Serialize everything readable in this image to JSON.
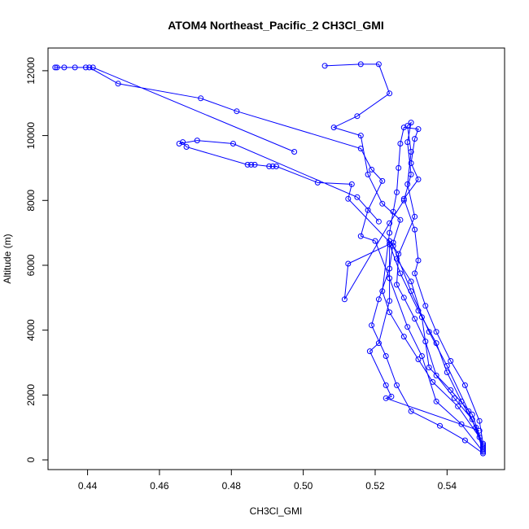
{
  "chart_data": {
    "type": "scatter",
    "title": "ATOM4 Northeast_Pacific_2 CH3Cl_GMI",
    "xlabel": "CH3Cl_GMI",
    "ylabel": "Altitude (m)",
    "xlim": [
      0.429,
      0.556
    ],
    "ylim": [
      -300,
      12700
    ],
    "x_ticks": [
      0.44,
      0.46,
      0.48,
      0.5,
      0.52,
      0.54
    ],
    "x_tick_labels": [
      "0.44",
      "0.46",
      "0.48",
      "0.50",
      "0.52",
      "0.54"
    ],
    "y_ticks": [
      0,
      2000,
      4000,
      6000,
      8000,
      10000,
      12000
    ],
    "y_tick_labels": [
      "0",
      "2000",
      "4000",
      "6000",
      "8000",
      "10000",
      "12000"
    ],
    "grid": false,
    "color": "#0000ff",
    "series": [
      {
        "mode": "lines+markers",
        "points": [
          [
            0.55,
            200
          ],
          [
            0.545,
            600
          ],
          [
            0.538,
            1050
          ],
          [
            0.53,
            1500
          ],
          [
            0.526,
            2300
          ],
          [
            0.523,
            3200
          ],
          [
            0.519,
            4150
          ],
          [
            0.521,
            4950
          ],
          [
            0.524,
            5900
          ],
          [
            0.525,
            6700
          ],
          [
            0.527,
            7400
          ],
          [
            0.522,
            7900
          ],
          [
            0.518,
            8800
          ],
          [
            0.516,
            10000
          ],
          [
            0.5085,
            10250
          ],
          [
            0.515,
            10600
          ],
          [
            0.524,
            11300
          ],
          [
            0.521,
            12200
          ],
          [
            0.516,
            12200
          ],
          [
            0.506,
            12150
          ]
        ]
      },
      {
        "mode": "lines+markers",
        "points": [
          [
            0.55,
            450
          ],
          [
            0.547,
            1400
          ],
          [
            0.541,
            2150
          ],
          [
            0.535,
            2850
          ],
          [
            0.533,
            4400
          ],
          [
            0.53,
            5500
          ],
          [
            0.526,
            6200
          ],
          [
            0.531,
            7500
          ],
          [
            0.529,
            8500
          ],
          [
            0.53,
            9500
          ],
          [
            0.529,
            10300
          ],
          [
            0.53,
            10400
          ],
          [
            0.529,
            9800
          ],
          [
            0.53,
            8800
          ],
          [
            0.528,
            8000
          ],
          [
            0.524,
            7300
          ],
          [
            0.5115,
            4950
          ],
          [
            0.5125,
            6050
          ],
          [
            0.524,
            6650
          ],
          [
            0.527,
            5750
          ],
          [
            0.532,
            4600
          ],
          [
            0.537,
            3600
          ],
          [
            0.54,
            2700
          ],
          [
            0.544,
            1800
          ],
          [
            0.548,
            1000
          ],
          [
            0.55,
            350
          ]
        ]
      },
      {
        "mode": "lines+markers",
        "points": [
          [
            0.55,
            250
          ],
          [
            0.544,
            1100
          ],
          [
            0.537,
            1800
          ],
          [
            0.533,
            3200
          ],
          [
            0.529,
            4100
          ],
          [
            0.524,
            5600
          ],
          [
            0.52,
            6750
          ],
          [
            0.516,
            6900
          ],
          [
            0.518,
            7700
          ],
          [
            0.522,
            8600
          ],
          [
            0.519,
            8950
          ],
          [
            0.516,
            9600
          ],
          [
            0.4815,
            10750
          ],
          [
            0.4715,
            11150
          ],
          [
            0.4485,
            11600
          ],
          [
            0.4405,
            12100
          ],
          [
            0.4395,
            12100
          ],
          [
            0.4335,
            12100
          ],
          [
            0.4315,
            12100
          ],
          [
            0.431,
            12100
          ],
          [
            0.4365,
            12100
          ],
          [
            0.4415,
            12100
          ],
          [
            0.4975,
            9500
          ]
        ]
      },
      {
        "mode": "lines+markers",
        "points": [
          [
            0.55,
            400
          ],
          [
            0.546,
            1500
          ],
          [
            0.54,
            2900
          ],
          [
            0.535,
            3950
          ],
          [
            0.53,
            5200
          ],
          [
            0.525,
            6600
          ],
          [
            0.5125,
            8050
          ],
          [
            0.5135,
            8500
          ],
          [
            0.504,
            8550
          ],
          [
            0.4925,
            9050
          ],
          [
            0.4915,
            9050
          ],
          [
            0.4905,
            9050
          ],
          [
            0.4865,
            9100
          ],
          [
            0.4855,
            9100
          ],
          [
            0.4845,
            9100
          ],
          [
            0.4675,
            9650
          ],
          [
            0.4665,
            9800
          ],
          [
            0.4655,
            9750
          ],
          [
            0.4705,
            9850
          ],
          [
            0.4805,
            9750
          ],
          [
            0.515,
            8100
          ],
          [
            0.521,
            7350
          ]
        ]
      },
      {
        "mode": "lines+markers",
        "points": [
          [
            0.549,
            700
          ],
          [
            0.543,
            1650
          ],
          [
            0.536,
            2400
          ],
          [
            0.532,
            3100
          ],
          [
            0.528,
            3800
          ],
          [
            0.524,
            4550
          ],
          [
            0.522,
            5200
          ],
          [
            0.524,
            7000
          ],
          [
            0.525,
            7650
          ],
          [
            0.526,
            8250
          ],
          [
            0.5265,
            9000
          ],
          [
            0.527,
            9750
          ],
          [
            0.528,
            10250
          ],
          [
            0.532,
            10200
          ],
          [
            0.531,
            9900
          ],
          [
            0.53,
            9150
          ],
          [
            0.532,
            8650
          ],
          [
            0.528,
            8050
          ],
          [
            0.531,
            7100
          ],
          [
            0.532,
            6150
          ],
          [
            0.531,
            5750
          ],
          [
            0.534,
            4750
          ],
          [
            0.537,
            3950
          ],
          [
            0.541,
            3050
          ],
          [
            0.545,
            2300
          ],
          [
            0.549,
            1200
          ],
          [
            0.55,
            500
          ]
        ]
      },
      {
        "mode": "lines+markers",
        "points": [
          [
            0.55,
            300
          ],
          [
            0.547,
            1250
          ],
          [
            0.542,
            1900
          ],
          [
            0.537,
            2600
          ],
          [
            0.534,
            3650
          ],
          [
            0.531,
            4350
          ],
          [
            0.528,
            5000
          ],
          [
            0.526,
            5400
          ],
          [
            0.5265,
            6350
          ],
          [
            0.524,
            6750
          ],
          [
            0.524,
            4900
          ],
          [
            0.521,
            3600
          ],
          [
            0.5185,
            3350
          ],
          [
            0.523,
            2300
          ],
          [
            0.5245,
            1950
          ],
          [
            0.523,
            1900
          ],
          [
            0.549,
            900
          ]
        ]
      }
    ]
  }
}
